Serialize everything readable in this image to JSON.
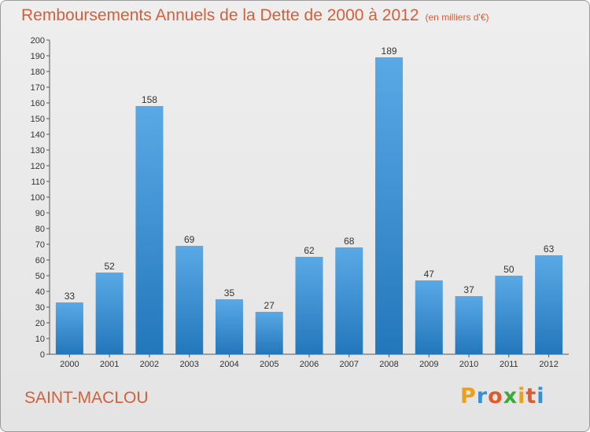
{
  "header": {
    "title": "Remboursements Annuels de la Dette de 2000 à 2012",
    "subtitle": "(en milliers d'€)"
  },
  "footer": {
    "commune": "SAINT-MACLOU",
    "logo_text": "Proxiti"
  },
  "colors": {
    "title": "#d2603a",
    "bar_top": "#5aa9e6",
    "bar_bottom": "#2277bb",
    "logo": [
      "#e8a020",
      "#3a8fd0",
      "#e05a2a",
      "#3aaa3a",
      "#e8a020",
      "#e05a2a",
      "#3a8fd0"
    ]
  },
  "chart_data": {
    "type": "bar",
    "categories": [
      "2000",
      "2001",
      "2002",
      "2003",
      "2004",
      "2005",
      "2006",
      "2007",
      "2008",
      "2009",
      "2010",
      "2011",
      "2012"
    ],
    "values": [
      33,
      52,
      158,
      69,
      35,
      27,
      62,
      68,
      189,
      47,
      37,
      50,
      63
    ],
    "title": "Remboursements Annuels de la Dette de 2000 à 2012",
    "ylim": [
      0,
      200
    ],
    "ytick_step": 10,
    "grid": false,
    "legend": "none"
  }
}
